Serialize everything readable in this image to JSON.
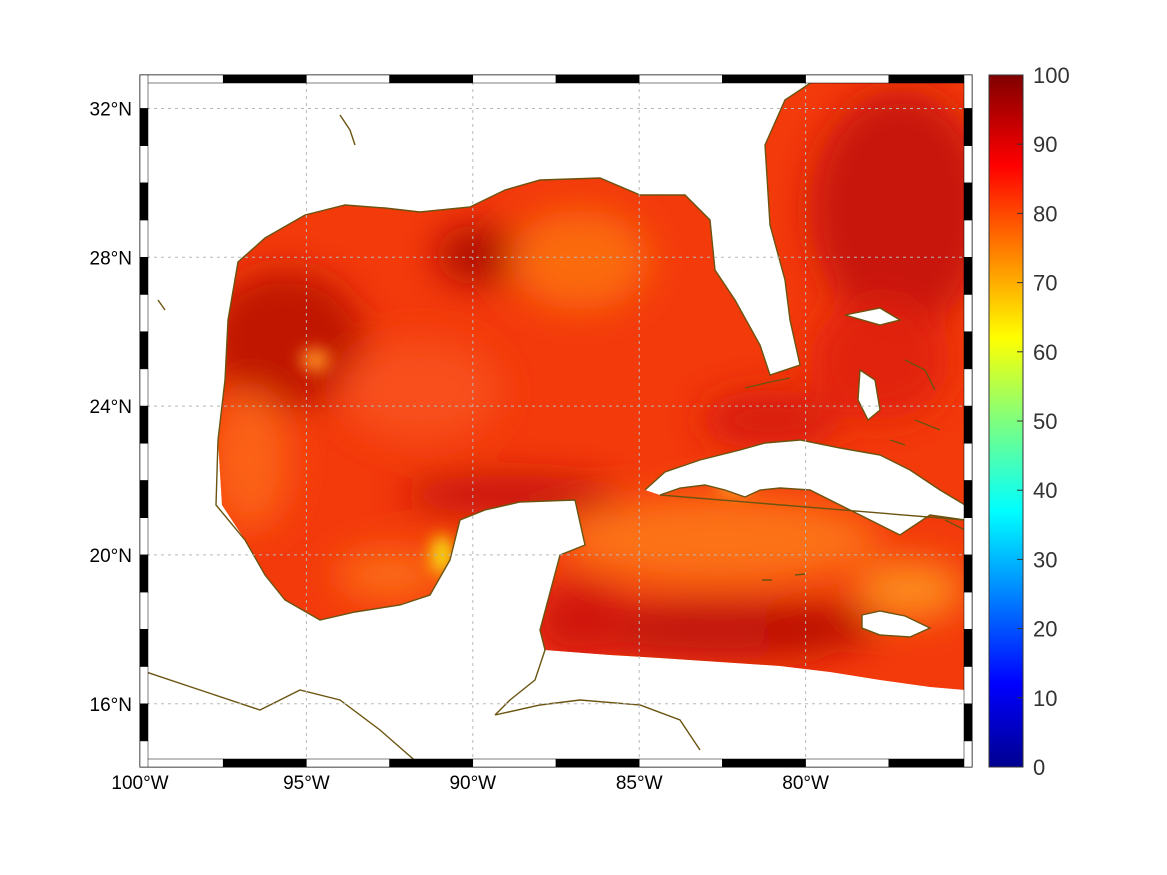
{
  "map": {
    "type": "heatmap",
    "region": "Gulf of Mexico and Caribbean",
    "lon_range": [
      -100,
      -75
    ],
    "lat_range": [
      14.3,
      32.9
    ],
    "x_ticks": [
      {
        "lon": -100,
        "label": "100°W"
      },
      {
        "lon": -95,
        "label": "95°W"
      },
      {
        "lon": -90,
        "label": "90°W"
      },
      {
        "lon": -85,
        "label": "85°W"
      },
      {
        "lon": -80,
        "label": "80°W"
      }
    ],
    "y_ticks": [
      {
        "lat": 32,
        "label": "32°N"
      },
      {
        "lat": 28,
        "label": "28°N"
      },
      {
        "lat": 24,
        "label": "24°N"
      },
      {
        "lat": 20,
        "label": "20°N"
      },
      {
        "lat": 16,
        "label": "16°N"
      }
    ],
    "grid": true,
    "colors": {
      "coastline": "#6b5310",
      "grid": "#b8b8b8"
    }
  },
  "colorbar": {
    "colormap": "jet",
    "range": [
      0,
      100
    ],
    "tick_labels": [
      "100",
      "90",
      "80",
      "70",
      "60",
      "50",
      "40",
      "30",
      "20",
      "10",
      "0"
    ],
    "placement": "right"
  },
  "chart_data": {
    "type": "heatmap",
    "value_range": [
      0,
      100
    ],
    "dominant_values": "mostly 80–95 over open water",
    "high_regions": [
      {
        "area": "western Gulf off Texas/Mexico",
        "value": 95
      },
      {
        "area": "Atlantic east of Florida",
        "value": 95
      },
      {
        "area": "Caribbean south of Jamaica",
        "value": 93
      }
    ],
    "low_regions": [
      {
        "area": "Bay of Campeche coast",
        "value": 70
      },
      {
        "area": "south of Cuba",
        "value": 78
      }
    ]
  }
}
